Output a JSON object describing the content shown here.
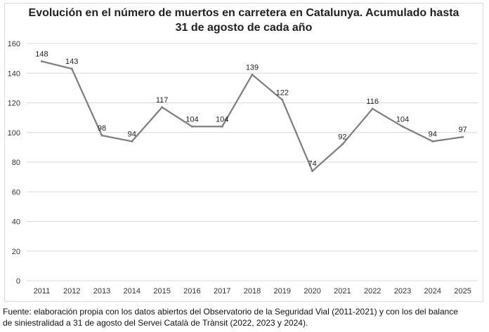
{
  "chart_data": {
    "type": "line",
    "title_lines": [
      "Evolución en el número de muertos en carretera en Catalunya. Acumulado hasta",
      "31 de agosto de cada año"
    ],
    "categories": [
      "2011",
      "2012",
      "2013",
      "2014",
      "2015",
      "2016",
      "2017",
      "2018",
      "2019",
      "2020",
      "2021",
      "2022",
      "2023",
      "2024",
      "2025"
    ],
    "series": [
      {
        "name": "Muertos",
        "values": [
          148,
          143,
          98,
          94,
          117,
          104,
          104,
          139,
          122,
          74,
          92,
          116,
          104,
          94,
          97
        ]
      }
    ],
    "y_ticks": [
      0,
      20,
      40,
      60,
      80,
      100,
      120,
      140,
      160
    ],
    "ylim": [
      0,
      160
    ],
    "grid": true,
    "line_color": "#7f7f7f",
    "grid_color": "#d9d9d9"
  },
  "source_lines": [
    "Fuente: elaboración propia con los datos abiertos del Observatorio de la Seguridad Vial (2011-2021) y con los del balance",
    "de siniestralidad a 31 de agosto del Servei Català de Trànsit (2022, 2023 y 2024)."
  ]
}
